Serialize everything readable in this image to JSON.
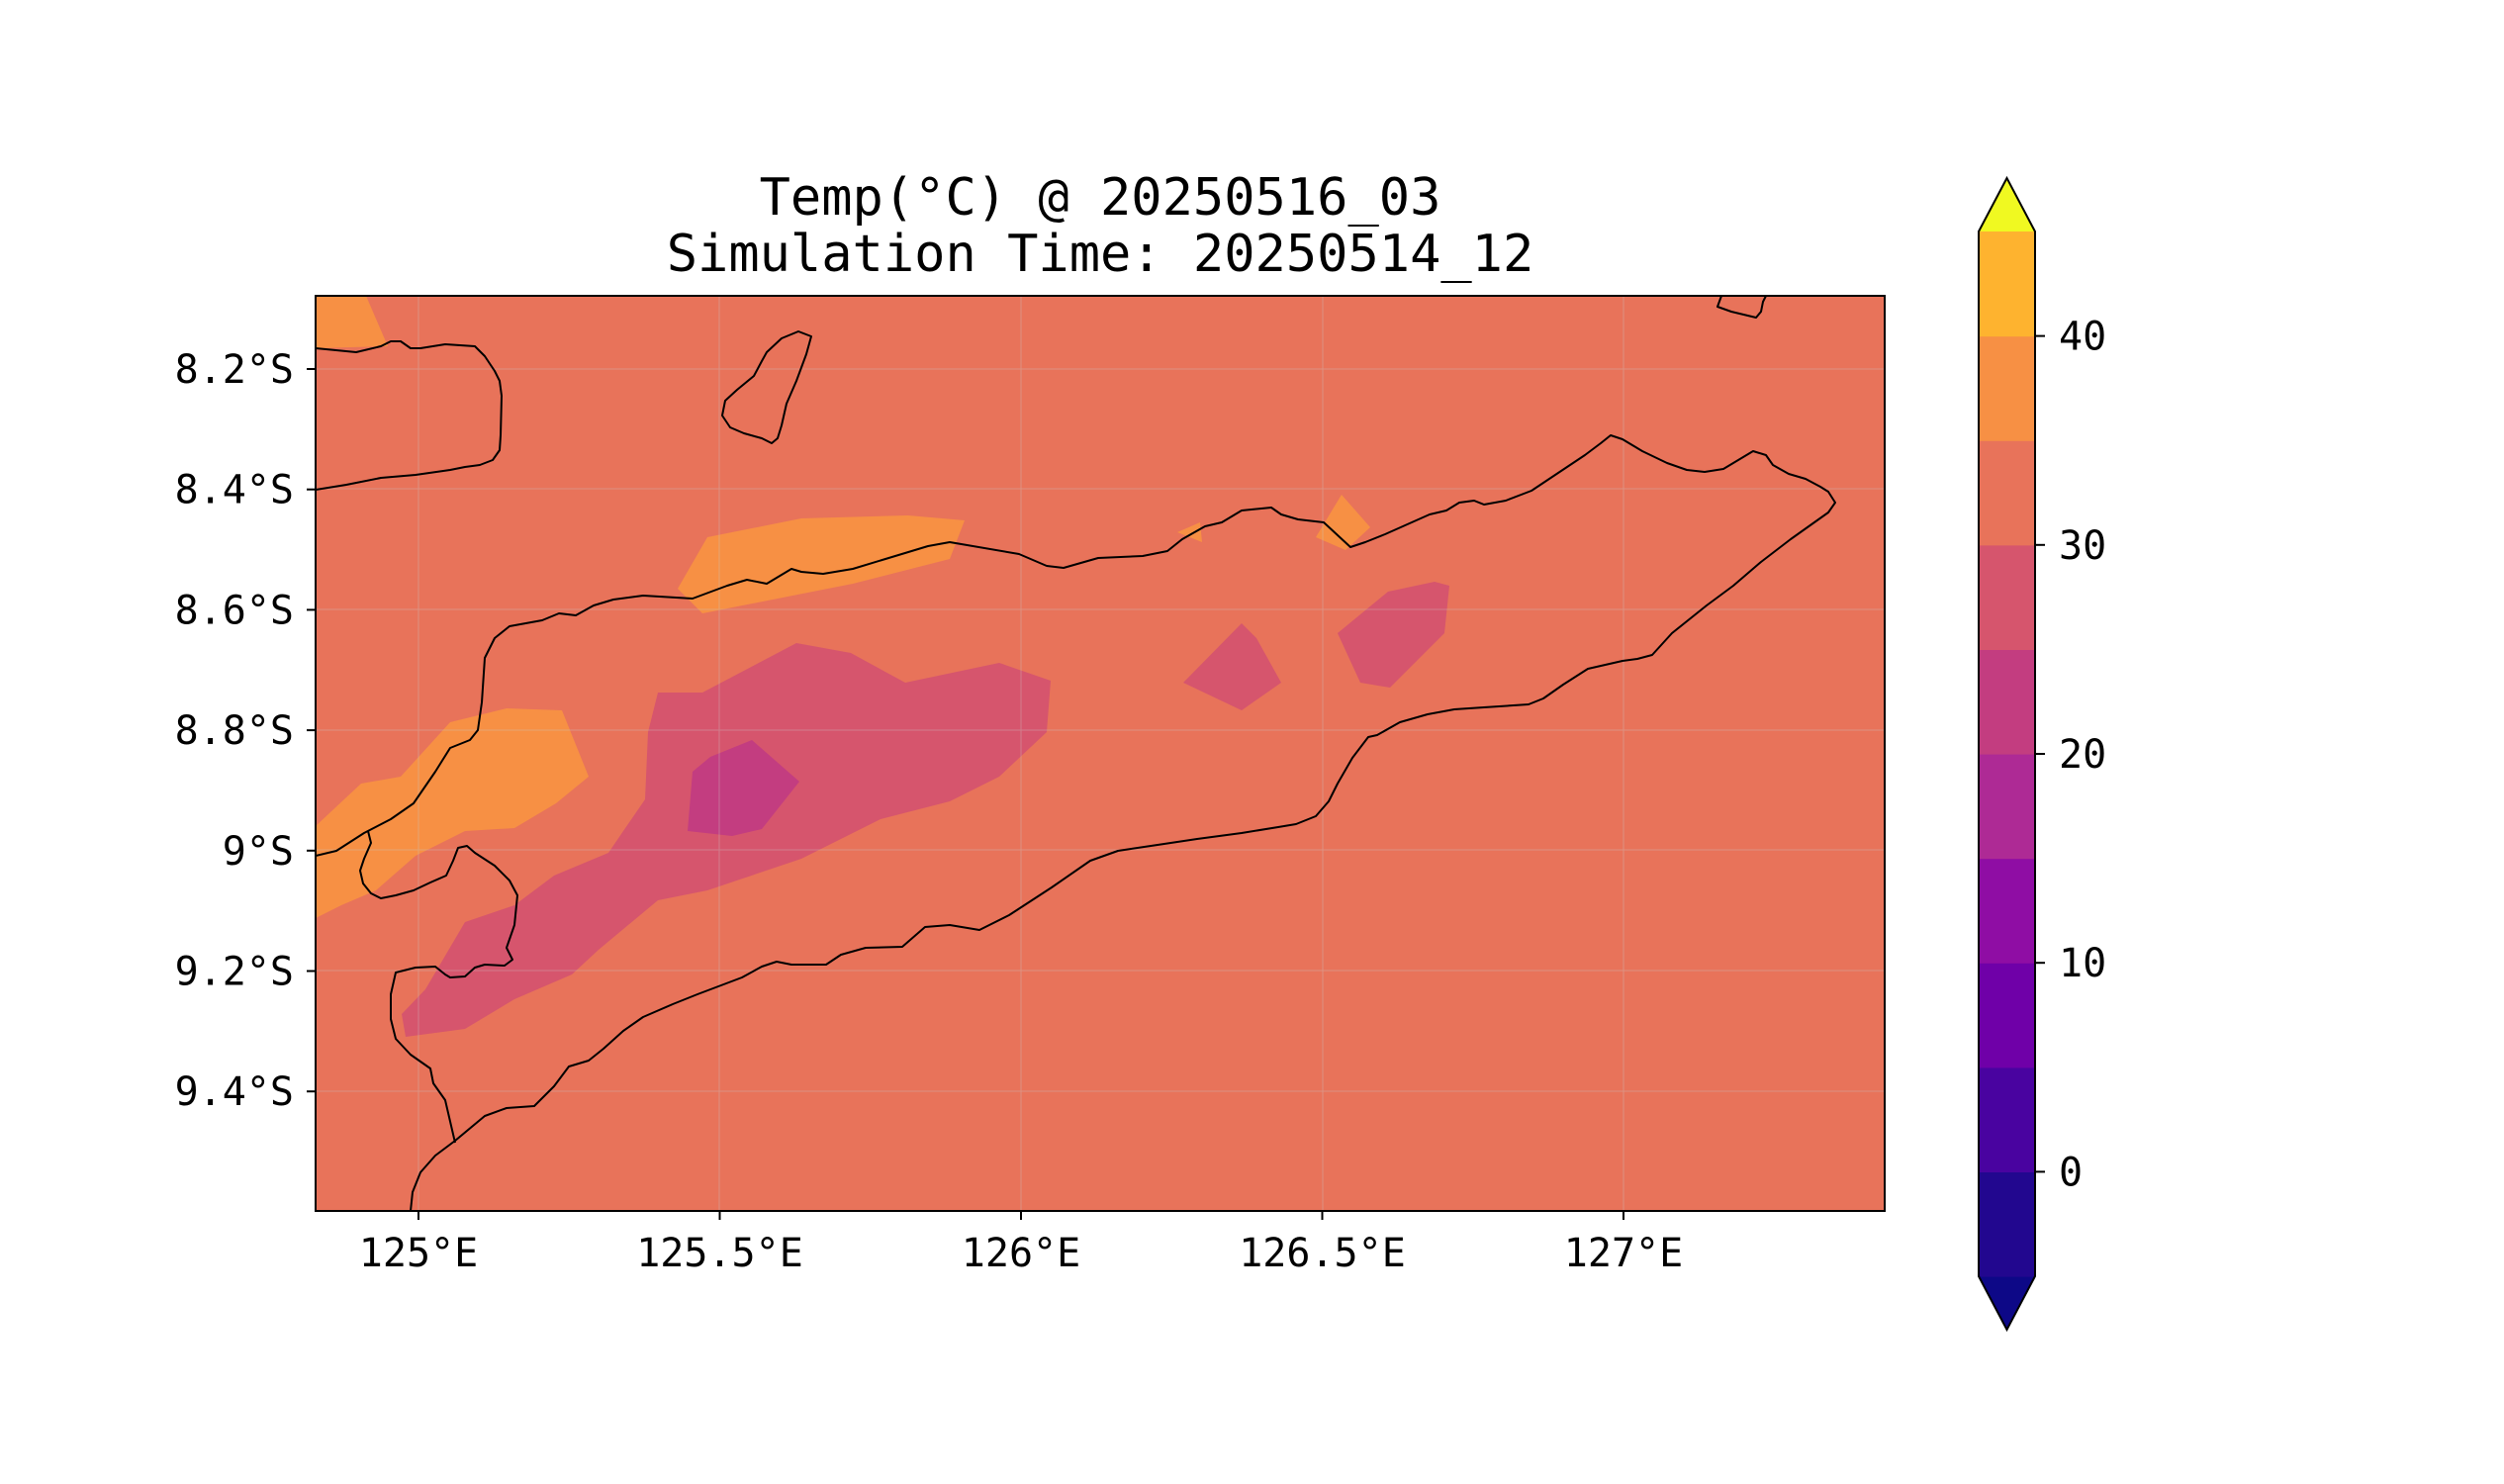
{
  "figure": {
    "title_line1": "Temp(°C) @ 20250516_03",
    "title_line2": "Simulation Time: 20250514_12"
  },
  "map": {
    "background_color": "#E8735A",
    "lon_ticks": [
      {
        "value": 125.0,
        "label": "125°E"
      },
      {
        "value": 125.5,
        "label": "125.5°E"
      },
      {
        "value": 126.0,
        "label": "126°E"
      },
      {
        "value": 126.5,
        "label": "126.5°E"
      },
      {
        "value": 127.0,
        "label": "127°E"
      }
    ],
    "lat_ticks": [
      {
        "value": -8.2,
        "label": "8.2°S"
      },
      {
        "value": -8.4,
        "label": "8.4°S"
      },
      {
        "value": -8.6,
        "label": "8.6°S"
      },
      {
        "value": -8.8,
        "label": "8.8°S"
      },
      {
        "value": -9.0,
        "label": "9°S"
      },
      {
        "value": -9.2,
        "label": "9.2°S"
      },
      {
        "value": -9.4,
        "label": "9.4°S"
      }
    ],
    "gridlines": true,
    "coastlines": true
  },
  "colorbar": {
    "levels": [
      -5,
      0,
      5,
      10,
      15,
      20,
      25,
      30,
      35,
      40,
      45
    ],
    "colors": [
      "#22078F",
      "#4903A0",
      "#6F00A8",
      "#8F0DA4",
      "#AE2A95",
      "#C33D80",
      "#D6556D",
      "#E8735A",
      "#F79044",
      "#FEB32F",
      "#F5E926"
    ],
    "under_color": "#0D0887",
    "over_color": "#F0F921",
    "tick_labels": [
      {
        "value": 0,
        "label": "0"
      },
      {
        "value": 10,
        "label": "10"
      },
      {
        "value": 20,
        "label": "20"
      },
      {
        "value": 30,
        "label": "30"
      },
      {
        "value": 40,
        "label": "40"
      }
    ],
    "extend": "both"
  }
}
